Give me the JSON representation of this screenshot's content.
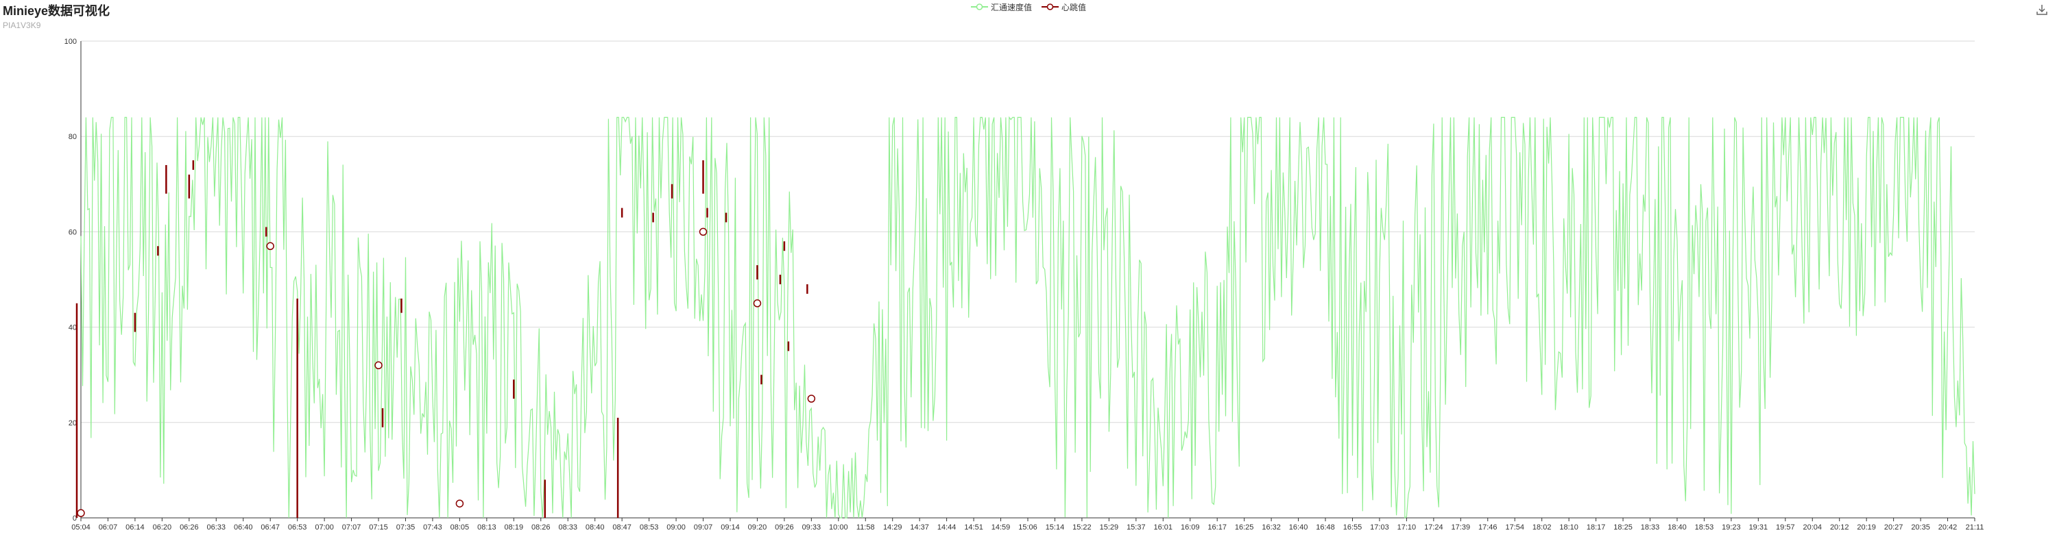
{
  "title": "Minieye数据可视化",
  "subtitle": "PIA1V3K9",
  "toolbox": {
    "icon": "download-icon"
  },
  "colors": {
    "speed": "#90ee90",
    "heartbeat": "#8b0000",
    "grid": "#d9d9d9",
    "axis": "#333333"
  },
  "chart_data": {
    "type": "line",
    "title": "Minieye数据可视化",
    "subtitle": "PIA1V3K9",
    "xlabel": "",
    "ylabel": "",
    "ylim": [
      0,
      100
    ],
    "yticks": [
      0,
      20,
      40,
      60,
      80,
      100
    ],
    "grid": true,
    "legend_position": "top-center",
    "categories": [
      "05:04",
      "06:07",
      "06:14",
      "06:20",
      "06:26",
      "06:33",
      "06:40",
      "06:47",
      "06:53",
      "07:00",
      "07:07",
      "07:15",
      "07:35",
      "07:43",
      "08:05",
      "08:13",
      "08:19",
      "08:26",
      "08:33",
      "08:40",
      "08:47",
      "08:53",
      "09:00",
      "09:07",
      "09:14",
      "09:20",
      "09:26",
      "09:33",
      "10:00",
      "11:58",
      "14:29",
      "14:37",
      "14:44",
      "14:51",
      "14:59",
      "15:06",
      "15:14",
      "15:22",
      "15:29",
      "15:37",
      "16:01",
      "16:09",
      "16:17",
      "16:25",
      "16:32",
      "16:40",
      "16:48",
      "16:55",
      "17:03",
      "17:10",
      "17:24",
      "17:39",
      "17:46",
      "17:54",
      "18:02",
      "18:10",
      "18:17",
      "18:25",
      "18:33",
      "18:40",
      "18:53",
      "19:23",
      "19:31",
      "19:57",
      "20:04",
      "20:12",
      "20:19",
      "20:27",
      "20:35",
      "20:42",
      "21:11"
    ],
    "series": [
      {
        "name": "汇通速度值",
        "color": "#90ee90",
        "values": [
          45,
          55,
          60,
          40,
          75,
          78,
          68,
          60,
          35,
          40,
          42,
          25,
          35,
          20,
          28,
          32,
          30,
          20,
          10,
          30,
          68,
          70,
          72,
          68,
          45,
          50,
          45,
          10,
          5,
          5,
          55,
          60,
          55,
          75,
          72,
          78,
          45,
          40,
          45,
          30,
          20,
          25,
          30,
          60,
          70,
          72,
          72,
          40,
          45,
          42,
          45,
          62,
          65,
          66,
          62,
          60,
          62,
          65,
          55,
          50,
          48,
          50,
          45,
          70,
          72,
          70,
          70,
          72,
          70,
          45,
          5
        ]
      },
      {
        "name": "心跳值",
        "color": "#8b0000",
        "points": [
          {
            "x": "05:04",
            "y": 1
          },
          {
            "x": "06:47",
            "y": 57
          },
          {
            "x": "07:15",
            "y": 32
          },
          {
            "x": "08:05",
            "y": 3
          },
          {
            "x": "09:07",
            "y": 60
          },
          {
            "x": "09:20",
            "y": 45
          },
          {
            "x": "09:33",
            "y": 25
          }
        ],
        "bars": [
          {
            "x": "05:04",
            "low": 0,
            "high": 45
          },
          {
            "x": "06:14",
            "low": 39,
            "high": 43
          },
          {
            "x": "06:20",
            "low": 68,
            "high": 74
          },
          {
            "x": "06:20",
            "low": 55,
            "high": 57
          },
          {
            "x": "06:26",
            "low": 67,
            "high": 72
          },
          {
            "x": "06:26",
            "low": 73,
            "high": 75
          },
          {
            "x": "06:47",
            "low": 59,
            "high": 61
          },
          {
            "x": "06:53",
            "low": 0,
            "high": 46
          },
          {
            "x": "07:15",
            "low": 19,
            "high": 23
          },
          {
            "x": "07:35",
            "low": 43,
            "high": 46
          },
          {
            "x": "08:19",
            "low": 25,
            "high": 29
          },
          {
            "x": "08:26",
            "low": 0,
            "high": 8
          },
          {
            "x": "08:47",
            "low": 0,
            "high": 21
          },
          {
            "x": "08:47",
            "low": 63,
            "high": 65
          },
          {
            "x": "08:53",
            "low": 62,
            "high": 64
          },
          {
            "x": "09:00",
            "low": 67,
            "high": 70
          },
          {
            "x": "09:07",
            "low": 68,
            "high": 75
          },
          {
            "x": "09:07",
            "low": 63,
            "high": 65
          },
          {
            "x": "09:14",
            "low": 62,
            "high": 64
          },
          {
            "x": "09:20",
            "low": 50,
            "high": 53
          },
          {
            "x": "09:20",
            "low": 28,
            "high": 30
          },
          {
            "x": "09:26",
            "low": 49,
            "high": 51
          },
          {
            "x": "09:26",
            "low": 56,
            "high": 58
          },
          {
            "x": "09:26",
            "low": 35,
            "high": 37
          },
          {
            "x": "09:33",
            "low": 47,
            "high": 49
          }
        ]
      }
    ]
  }
}
